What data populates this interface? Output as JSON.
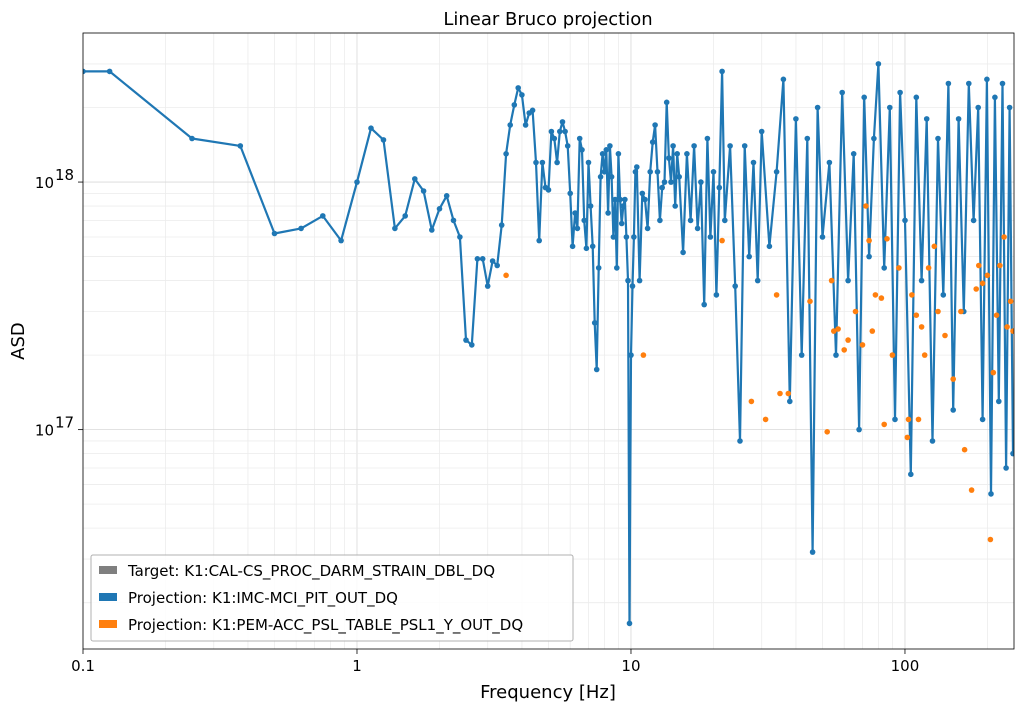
{
  "chart_data": {
    "type": "line",
    "title": "Linear Bruco projection",
    "xlabel": "Frequency [Hz]",
    "ylabel": "ASD",
    "xscale": "log",
    "yscale": "log",
    "xlim": [
      0.1,
      250
    ],
    "ylim": [
      1.3e+16,
      4e+18
    ],
    "grid": true,
    "legend_position": "lower-left",
    "x_ticks": [
      {
        "value": 0.1,
        "label": "0.1"
      },
      {
        "value": 1,
        "label": "1"
      },
      {
        "value": 10,
        "label": "10"
      },
      {
        "value": 100,
        "label": "100"
      }
    ],
    "y_ticks": [
      {
        "value": 1e+17,
        "label": "10",
        "exp": "17"
      },
      {
        "value": 1e+18,
        "label": "10",
        "exp": "18"
      }
    ],
    "series": [
      {
        "name": "Target: K1:CAL-CS_PROC_DARM_STRAIN_DBL_DQ",
        "color": "#7f7f7f",
        "style": "none",
        "points": []
      },
      {
        "name": "Projection: K1:IMC-MCI_PIT_OUT_DQ",
        "color": "#1f77b4",
        "style": "line",
        "points": [
          [
            0.1,
            2.8e+18
          ],
          [
            0.125,
            2.8e+18
          ],
          [
            0.25,
            1.5e+18
          ],
          [
            0.375,
            1.4e+18
          ],
          [
            0.5,
            6.2e+17
          ],
          [
            0.625,
            6.5e+17
          ],
          [
            0.75,
            7.3e+17
          ],
          [
            0.875,
            5.8e+17
          ],
          [
            1.0,
            1e+18
          ],
          [
            1.125,
            1.65e+18
          ],
          [
            1.25,
            1.48e+18
          ],
          [
            1.375,
            6.5e+17
          ],
          [
            1.5,
            7.3e+17
          ],
          [
            1.625,
            1.03e+18
          ],
          [
            1.75,
            9.2e+17
          ],
          [
            1.875,
            6.4e+17
          ],
          [
            2.0,
            7.8e+17
          ],
          [
            2.125,
            8.8e+17
          ],
          [
            2.25,
            7e+17
          ],
          [
            2.375,
            6e+17
          ],
          [
            2.5,
            2.3e+17
          ],
          [
            2.625,
            2.2e+17
          ],
          [
            2.75,
            4.9e+17
          ],
          [
            2.875,
            4.9e+17
          ],
          [
            3.0,
            3.8e+17
          ],
          [
            3.125,
            4.8e+17
          ],
          [
            3.25,
            4.6e+17
          ],
          [
            3.375,
            6.7e+17
          ],
          [
            3.5,
            1.3e+18
          ],
          [
            3.625,
            1.7e+18
          ],
          [
            3.75,
            2.05e+18
          ],
          [
            3.875,
            2.4e+18
          ],
          [
            4.0,
            2.25e+18
          ],
          [
            4.125,
            1.7e+18
          ],
          [
            4.25,
            1.9e+18
          ],
          [
            4.375,
            1.95e+18
          ],
          [
            4.5,
            1.2e+18
          ],
          [
            4.625,
            5.8e+17
          ],
          [
            4.75,
            1.2e+18
          ],
          [
            4.875,
            9.5e+17
          ],
          [
            5.0,
            9.3e+17
          ],
          [
            5.125,
            1.6e+18
          ],
          [
            5.25,
            1.5e+18
          ],
          [
            5.375,
            1.2e+18
          ],
          [
            5.5,
            1.6e+18
          ],
          [
            5.625,
            1.75e+18
          ],
          [
            5.75,
            1.6e+18
          ],
          [
            5.875,
            1.4e+18
          ],
          [
            6.0,
            9e+17
          ],
          [
            6.125,
            5.5e+17
          ],
          [
            6.25,
            7.5e+17
          ],
          [
            6.375,
            6.5e+17
          ],
          [
            6.5,
            1.5e+18
          ],
          [
            6.625,
            1.35e+18
          ],
          [
            6.75,
            7e+17
          ],
          [
            6.875,
            5.4e+17
          ],
          [
            7.0,
            1.2e+18
          ],
          [
            7.125,
            8e+17
          ],
          [
            7.25,
            5.5e+17
          ],
          [
            7.375,
            2.7e+17
          ],
          [
            7.5,
            1.75e+17
          ],
          [
            7.625,
            4.5e+17
          ],
          [
            7.75,
            1.05e+18
          ],
          [
            7.875,
            1.3e+18
          ],
          [
            8.0,
            1.1e+18
          ],
          [
            8.125,
            1.35e+18
          ],
          [
            8.25,
            7.5e+17
          ],
          [
            8.375,
            1.4e+18
          ],
          [
            8.5,
            1.05e+18
          ],
          [
            8.625,
            6e+17
          ],
          [
            8.75,
            8.5e+17
          ],
          [
            8.875,
            4.5e+17
          ],
          [
            9.0,
            1.3e+18
          ],
          [
            9.125,
            8.5e+17
          ],
          [
            9.25,
            6.8e+17
          ],
          [
            9.375,
            8e+17
          ],
          [
            9.5,
            8.5e+17
          ],
          [
            9.625,
            6e+17
          ],
          [
            9.75,
            4e+17
          ],
          [
            9.875,
            1.65e+16
          ],
          [
            10.0,
            2e+17
          ],
          [
            10.125,
            3.8e+17
          ],
          [
            10.25,
            6e+17
          ],
          [
            10.375,
            1.1e+18
          ],
          [
            10.5,
            1.15e+18
          ],
          [
            10.75,
            4e+17
          ],
          [
            11.0,
            9e+17
          ],
          [
            11.25,
            8.5e+17
          ],
          [
            11.5,
            6.5e+17
          ],
          [
            11.75,
            1.1e+18
          ],
          [
            12.0,
            1.45e+18
          ],
          [
            12.25,
            1.7e+18
          ],
          [
            12.5,
            1.1e+18
          ],
          [
            12.75,
            7e+17
          ],
          [
            13.0,
            9.5e+17
          ],
          [
            13.25,
            1e+18
          ],
          [
            13.5,
            2.1e+18
          ],
          [
            13.75,
            1.25e+18
          ],
          [
            14.0,
            1e+18
          ],
          [
            14.25,
            1.4e+18
          ],
          [
            14.5,
            8e+17
          ],
          [
            14.75,
            1.3e+18
          ],
          [
            15.0,
            1.05e+18
          ],
          [
            15.5,
            5.2e+17
          ],
          [
            16.0,
            1.3e+18
          ],
          [
            16.5,
            7e+17
          ],
          [
            17.0,
            1.4e+18
          ],
          [
            17.5,
            6.5e+17
          ],
          [
            18.0,
            1e+18
          ],
          [
            18.5,
            3.2e+17
          ],
          [
            19.0,
            1.5e+18
          ],
          [
            19.5,
            6e+17
          ],
          [
            20.0,
            1.1e+18
          ],
          [
            20.5,
            3.5e+17
          ],
          [
            21.0,
            9.5e+17
          ],
          [
            21.5,
            2.8e+18
          ],
          [
            22.0,
            7e+17
          ],
          [
            23.0,
            1.4e+18
          ],
          [
            24.0,
            3.8e+17
          ],
          [
            25.0,
            9e+16
          ],
          [
            26.0,
            1.4e+18
          ],
          [
            27.0,
            5e+17
          ],
          [
            28.0,
            1.2e+18
          ],
          [
            29.0,
            4e+17
          ],
          [
            30.0,
            1.6e+18
          ],
          [
            32.0,
            5.5e+17
          ],
          [
            34.0,
            1.1e+18
          ],
          [
            36.0,
            2.6e+18
          ],
          [
            38.0,
            1.3e+17
          ],
          [
            40.0,
            1.8e+18
          ],
          [
            42.0,
            2e+17
          ],
          [
            44.0,
            1.5e+18
          ],
          [
            46.0,
            3.2e+16
          ],
          [
            48.0,
            2e+18
          ],
          [
            50.0,
            6e+17
          ],
          [
            53.0,
            1.2e+18
          ],
          [
            56.0,
            2e+17
          ],
          [
            59.0,
            2.3e+18
          ],
          [
            62.0,
            4e+17
          ],
          [
            65.0,
            1.3e+18
          ],
          [
            68.0,
            1e+17
          ],
          [
            71.0,
            2.2e+18
          ],
          [
            74.0,
            5e+17
          ],
          [
            77.0,
            1.5e+18
          ],
          [
            80.0,
            3e+18
          ],
          [
            84.0,
            4.5e+17
          ],
          [
            88.0,
            2e+18
          ],
          [
            92.0,
            1.1e+17
          ],
          [
            96.0,
            2.3e+18
          ],
          [
            100.0,
            7e+17
          ],
          [
            105.0,
            6.6e+16
          ],
          [
            110.0,
            2.2e+18
          ],
          [
            115.0,
            4e+17
          ],
          [
            120.0,
            1.8e+18
          ],
          [
            126.0,
            9e+16
          ],
          [
            132.0,
            1.5e+18
          ],
          [
            138.0,
            3.5e+17
          ],
          [
            144.0,
            2.5e+18
          ],
          [
            150.0,
            1.2e+17
          ],
          [
            157.0,
            1.8e+18
          ],
          [
            164.0,
            3e+17
          ],
          [
            171.0,
            2.5e+18
          ],
          [
            178.0,
            7e+17
          ],
          [
            185.0,
            2e+18
          ],
          [
            192.0,
            1.1e+17
          ],
          [
            199.0,
            2.6e+18
          ],
          [
            206.0,
            5.5e+16
          ],
          [
            213.0,
            2.2e+18
          ],
          [
            220.0,
            1.3e+17
          ],
          [
            227.0,
            2.5e+18
          ],
          [
            234.0,
            7e+16
          ],
          [
            241.0,
            2e+18
          ],
          [
            248.0,
            8e+16
          ]
        ]
      },
      {
        "name": "Projection: K1:PEM-ACC_PSL_TABLE_PSL1_Y_OUT_DQ",
        "color": "#ff7f0e",
        "style": "markers",
        "points": [
          [
            3.5,
            4.2e+17
          ],
          [
            11.1,
            2e+17
          ],
          [
            21.5,
            5.8e+17
          ],
          [
            27.5,
            1.3e+17
          ],
          [
            31.0,
            1.1e+17
          ],
          [
            34.0,
            3.5e+17
          ],
          [
            35.0,
            1.4e+17
          ],
          [
            37.5,
            1.4e+17
          ],
          [
            45.0,
            3.3e+17
          ],
          [
            52.0,
            9.8e+16
          ],
          [
            54.0,
            4e+17
          ],
          [
            55.0,
            2.5e+17
          ],
          [
            57.0,
            2.55e+17
          ],
          [
            60.0,
            2.1e+17
          ],
          [
            62.0,
            2.3e+17
          ],
          [
            66.0,
            3e+17
          ],
          [
            70.0,
            2.2e+17
          ],
          [
            72.0,
            8e+17
          ],
          [
            74.0,
            5.8e+17
          ],
          [
            76.0,
            2.5e+17
          ],
          [
            78.0,
            3.5e+17
          ],
          [
            82.0,
            3.4e+17
          ],
          [
            84.0,
            1.05e+17
          ],
          [
            86.0,
            5.9e+17
          ],
          [
            90.0,
            2e+17
          ],
          [
            95.0,
            4.5e+17
          ],
          [
            102.0,
            9.3e+16
          ],
          [
            103.0,
            1.1e+17
          ],
          [
            106.0,
            3.5e+17
          ],
          [
            110.0,
            2.9e+17
          ],
          [
            112.0,
            1.1e+17
          ],
          [
            115.0,
            2.6e+17
          ],
          [
            118.0,
            2e+17
          ],
          [
            122.0,
            4.5e+17
          ],
          [
            128.0,
            5.5e+17
          ],
          [
            132.0,
            3e+17
          ],
          [
            140.0,
            2.4e+17
          ],
          [
            150.0,
            1.6e+17
          ],
          [
            160.0,
            3e+17
          ],
          [
            165.0,
            8.3e+16
          ],
          [
            175.0,
            5.7e+16
          ],
          [
            182.0,
            3.7e+17
          ],
          [
            186.0,
            4.6e+17
          ],
          [
            192.0,
            3.9e+17
          ],
          [
            200.0,
            4.2e+17
          ],
          [
            205.0,
            3.6e+16
          ],
          [
            210.0,
            1.7e+17
          ],
          [
            216.0,
            2.9e+17
          ],
          [
            222.0,
            4.6e+17
          ],
          [
            230.0,
            6e+17
          ],
          [
            236.0,
            2.6e+17
          ],
          [
            243.0,
            3.3e+17
          ],
          [
            248.0,
            2.5e+17
          ]
        ]
      }
    ]
  }
}
